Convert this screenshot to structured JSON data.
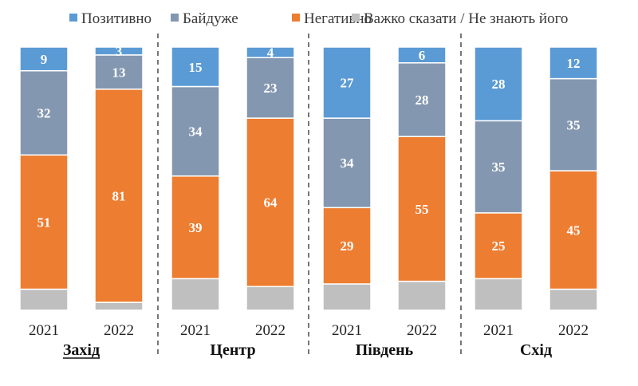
{
  "chart_data": {
    "type": "bar",
    "stacked": true,
    "grid": false,
    "legend_position": "top",
    "ylim": [
      0,
      100
    ],
    "series": [
      {
        "key": "neg",
        "name": "Негативно",
        "color": "#ED7D31"
      },
      {
        "key": "ind",
        "name": "Байдуже",
        "color": "#8497B0"
      },
      {
        "key": "pos",
        "name": "Позитивно",
        "color": "#5B9BD5"
      },
      {
        "key": "dk",
        "name": "Важко сказати / Не знають його",
        "color": "#BFBFBF"
      }
    ],
    "legend_order": [
      "pos",
      "ind",
      "neg",
      "dk"
    ],
    "groups": [
      {
        "region": "Захід",
        "underline": true,
        "bars": [
          {
            "year": "2021",
            "pos": 9,
            "ind": 32,
            "neg": 51,
            "dk": 8
          },
          {
            "year": "2022",
            "pos": 3,
            "ind": 13,
            "neg": 81,
            "dk": 3
          }
        ]
      },
      {
        "region": "Центр",
        "underline": false,
        "bars": [
          {
            "year": "2021",
            "pos": 15,
            "ind": 34,
            "neg": 39,
            "dk": 12
          },
          {
            "year": "2022",
            "pos": 4,
            "ind": 23,
            "neg": 64,
            "dk": 9
          }
        ]
      },
      {
        "region": "Південь",
        "underline": false,
        "bars": [
          {
            "year": "2021",
            "pos": 27,
            "ind": 34,
            "neg": 29,
            "dk": 10
          },
          {
            "year": "2022",
            "pos": 6,
            "ind": 28,
            "neg": 55,
            "dk": 11
          }
        ]
      },
      {
        "region": "Схід",
        "underline": false,
        "bars": [
          {
            "year": "2021",
            "pos": 28,
            "ind": 35,
            "neg": 25,
            "dk": 12
          },
          {
            "year": "2022",
            "pos": 12,
            "ind": 35,
            "neg": 45,
            "dk": 8
          }
        ]
      }
    ]
  }
}
